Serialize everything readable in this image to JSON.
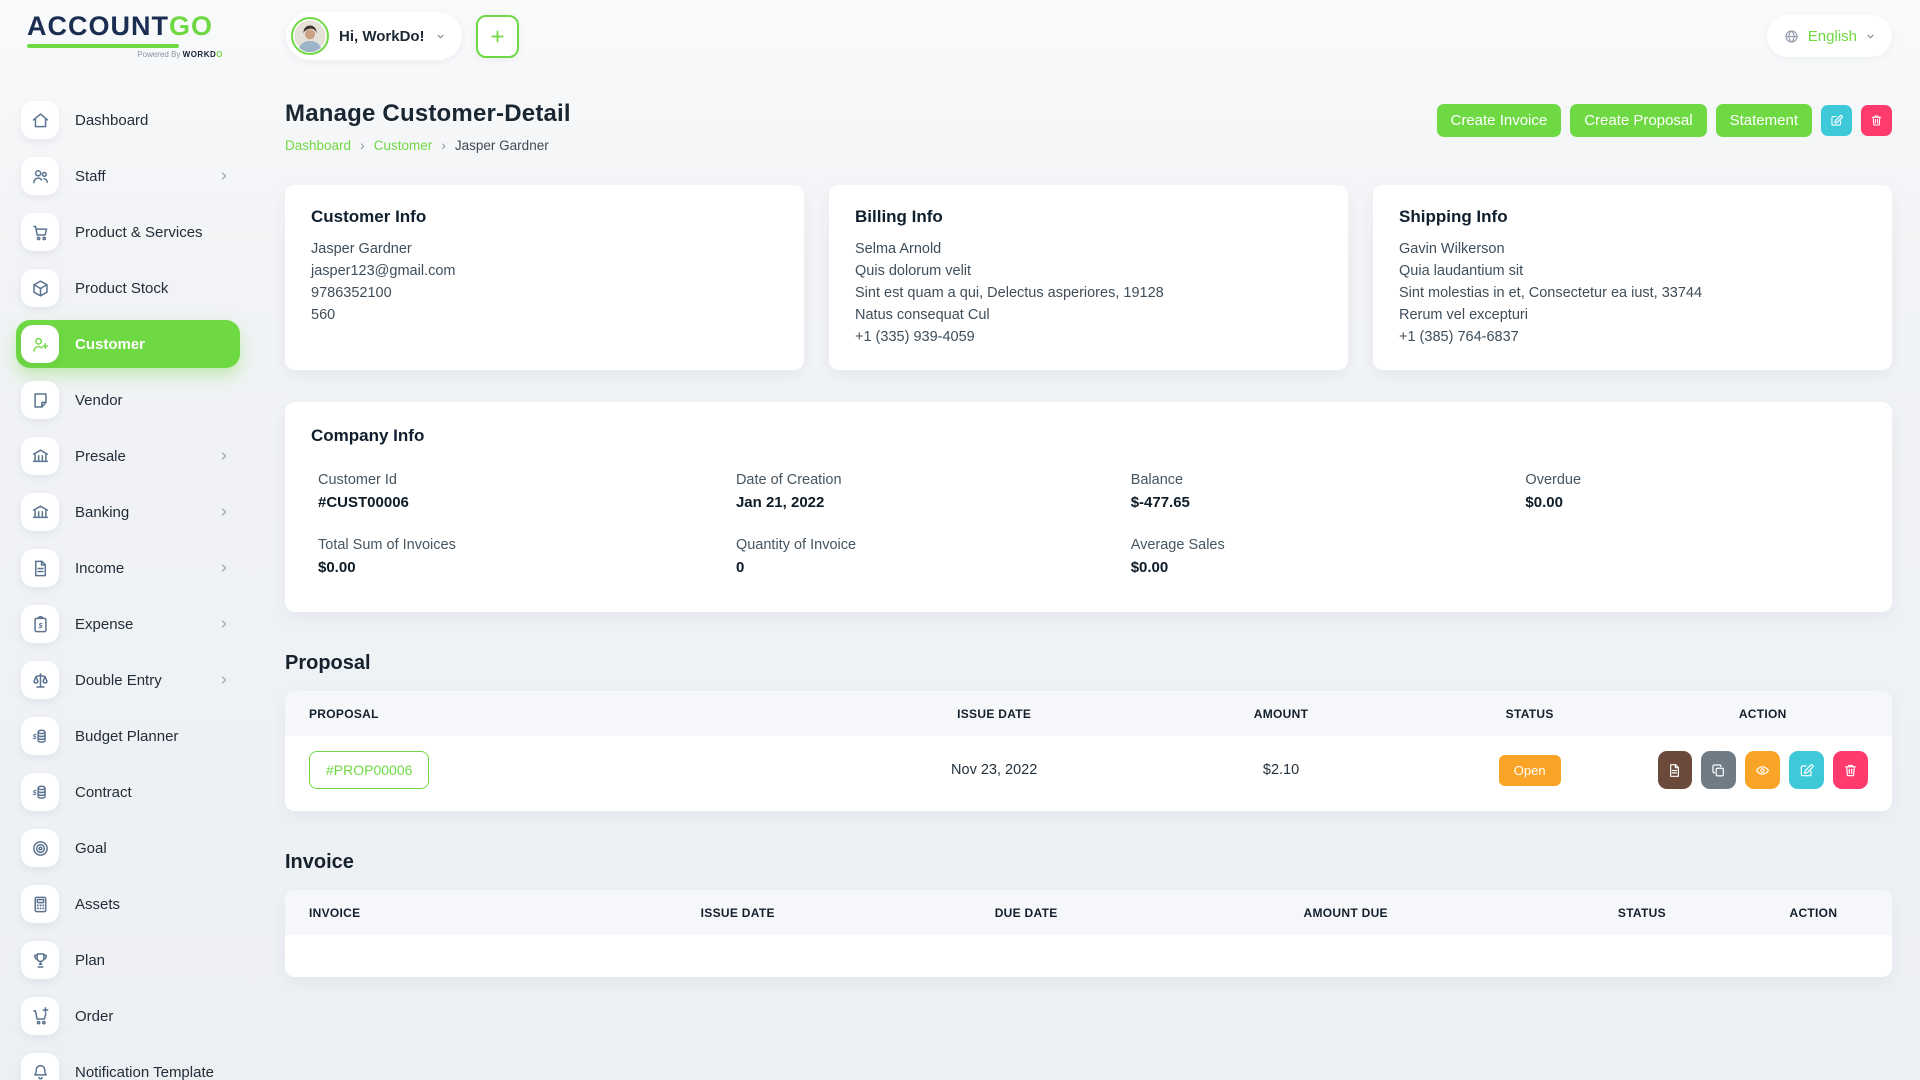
{
  "brand": {
    "name_primary": "ACCOUNT",
    "name_accent": "GO",
    "powered_by": "Powered By",
    "powered_brand_dark": "WORKD",
    "powered_brand_accent": "O"
  },
  "header": {
    "greeting": "Hi, WorkDo!",
    "language": "English"
  },
  "sidebar": {
    "items": [
      {
        "label": "Dashboard",
        "icon": "home"
      },
      {
        "label": "Staff",
        "icon": "users",
        "has_submenu": true
      },
      {
        "label": "Product & Services",
        "icon": "cart"
      },
      {
        "label": "Product Stock",
        "icon": "box"
      },
      {
        "label": "Customer",
        "icon": "user-plus",
        "active": true
      },
      {
        "label": "Vendor",
        "icon": "note"
      },
      {
        "label": "Presale",
        "icon": "bank",
        "has_submenu": true
      },
      {
        "label": "Banking",
        "icon": "bank",
        "has_submenu": true
      },
      {
        "label": "Income",
        "icon": "file",
        "has_submenu": true
      },
      {
        "label": "Expense",
        "icon": "clipboard-dollar",
        "has_submenu": true
      },
      {
        "label": "Double Entry",
        "icon": "scale",
        "has_submenu": true
      },
      {
        "label": "Budget Planner",
        "icon": "coins"
      },
      {
        "label": "Contract",
        "icon": "coins"
      },
      {
        "label": "Goal",
        "icon": "target"
      },
      {
        "label": "Assets",
        "icon": "calculator"
      },
      {
        "label": "Plan",
        "icon": "trophy"
      },
      {
        "label": "Order",
        "icon": "cart-plus"
      },
      {
        "label": "Notification Template",
        "icon": "bell"
      }
    ]
  },
  "page": {
    "title": "Manage Customer-Detail",
    "breadcrumb": {
      "items": [
        "Dashboard",
        "Customer",
        "Jasper Gardner"
      ],
      "separator": "›"
    },
    "actions": [
      "Create Invoice",
      "Create Proposal",
      "Statement"
    ]
  },
  "cards": {
    "customer_info": {
      "title": "Customer Info",
      "lines": [
        "Jasper Gardner",
        "jasper123@gmail.com",
        "9786352100",
        "560"
      ]
    },
    "billing_info": {
      "title": "Billing Info",
      "lines": [
        "Selma Arnold",
        "Quis dolorum velit",
        "Sint est quam a qui, Delectus asperiores, 19128",
        "Natus consequat Cul",
        "+1 (335) 939-4059"
      ]
    },
    "shipping_info": {
      "title": "Shipping Info",
      "lines": [
        "Gavin Wilkerson",
        "Quia laudantium sit",
        "Sint molestias in et, Consectetur ea iust, 33744",
        "Rerum vel excepturi",
        "+1 (385) 764-6837"
      ]
    },
    "company_info": {
      "title": "Company Info",
      "fields": [
        {
          "label": "Customer Id",
          "value": "#CUST00006"
        },
        {
          "label": "Date of Creation",
          "value": "Jan 21, 2022"
        },
        {
          "label": "Balance",
          "value": "$-477.65"
        },
        {
          "label": "Overdue",
          "value": "$0.00"
        },
        {
          "label": "Total Sum of Invoices",
          "value": "$0.00"
        },
        {
          "label": "Quantity of Invoice",
          "value": "0"
        },
        {
          "label": "Average Sales",
          "value": "$0.00"
        }
      ]
    }
  },
  "proposal": {
    "title": "Proposal",
    "columns": [
      "PROPOSAL",
      "ISSUE DATE",
      "AMOUNT",
      "STATUS",
      "ACTION"
    ],
    "rows": [
      {
        "id": "#PROP00006",
        "issue_date": "Nov 23, 2022",
        "amount": "$2.10",
        "status": "Open",
        "actions": [
          "file",
          "copy",
          "eye",
          "edit",
          "trash"
        ]
      }
    ]
  },
  "invoice": {
    "title": "Invoice",
    "columns": [
      "INVOICE",
      "ISSUE DATE",
      "DUE DATE",
      "AMOUNT DUE",
      "STATUS",
      "ACTION"
    ],
    "rows": []
  },
  "theme": {
    "green": "#6fd943",
    "cyan": "#3ec9d9",
    "pink": "#ff3a6d",
    "orange": "#f9a426",
    "brown": "#6b4a3c",
    "gray": "#6f7b85",
    "navy": "#1b2e52",
    "text": "#1c2a36",
    "muted": "#46555f"
  }
}
